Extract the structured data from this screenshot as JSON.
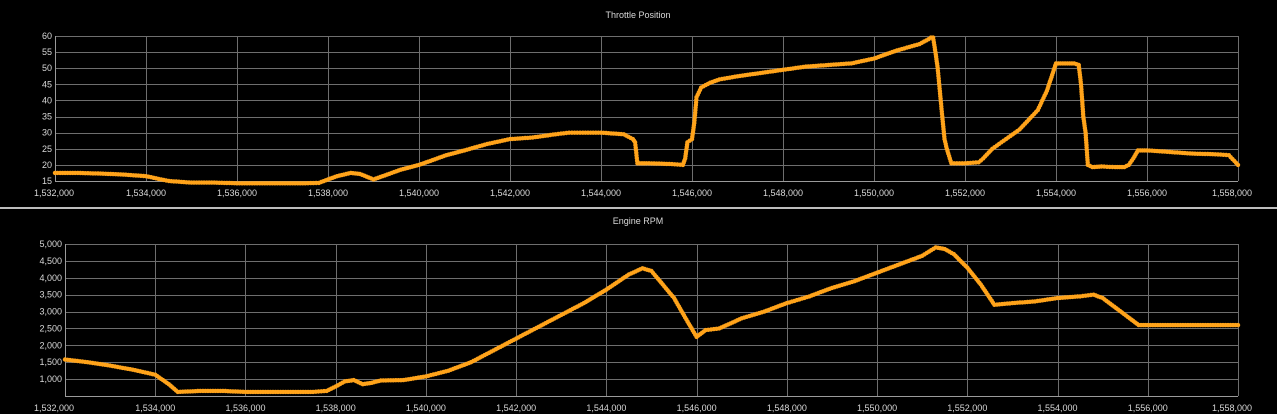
{
  "colors": {
    "background": "#000000",
    "series": "#ffa31a",
    "grid": "#6e6e6e",
    "text": "#d8d8d8"
  },
  "chart_data": [
    {
      "type": "line",
      "title": "Throttle Position",
      "xlabel": "",
      "ylabel": "",
      "xlim": [
        1532000,
        1558000
      ],
      "ylim": [
        15,
        60
      ],
      "xticks": [
        1532000,
        1534000,
        1536000,
        1538000,
        1540000,
        1542000,
        1544000,
        1546000,
        1548000,
        1550000,
        1552000,
        1554000,
        1556000,
        1558000
      ],
      "yticks": [
        15,
        20,
        25,
        30,
        35,
        40,
        45,
        50,
        55,
        60
      ],
      "grid": true,
      "legend": "none",
      "markers": true,
      "series": [
        {
          "x": [
            1532000,
            1532500,
            1533000,
            1533500,
            1534000,
            1534500,
            1535000,
            1535500,
            1536000,
            1536500,
            1537000,
            1537500,
            1537800,
            1538000,
            1538200,
            1538500,
            1538700,
            1539000,
            1539300,
            1539600,
            1540000,
            1540300,
            1540600,
            1541000,
            1541500,
            1542000,
            1542500,
            1543000,
            1543300,
            1543600,
            1544000,
            1544500,
            1544700,
            1544750,
            1544800,
            1545000,
            1545500,
            1545800,
            1545850,
            1545900,
            1546000,
            1546050,
            1546100,
            1546200,
            1546400,
            1546600,
            1547000,
            1547500,
            1548000,
            1548500,
            1549000,
            1549500,
            1550000,
            1550500,
            1551000,
            1551200,
            1551250,
            1551300,
            1551350,
            1551400,
            1551500,
            1551550,
            1551600,
            1551700,
            1552000,
            1552300,
            1552400,
            1552600,
            1552800,
            1553000,
            1553200,
            1553400,
            1553600,
            1553700,
            1553800,
            1554000,
            1554200,
            1554400,
            1554500,
            1554550,
            1554600,
            1554650,
            1554700,
            1554800,
            1555000,
            1555300,
            1555500,
            1555600,
            1555700,
            1555800,
            1556000,
            1556500,
            1557000,
            1557500,
            1557800,
            1558000
          ],
          "y": [
            17.5,
            17.5,
            17.3,
            17,
            16.5,
            15,
            14.5,
            14.5,
            14.3,
            14.3,
            14.3,
            14.3,
            14.4,
            15.5,
            16.5,
            17.5,
            17.2,
            15.5,
            17,
            18.5,
            20,
            21.5,
            23,
            24.5,
            26.5,
            28,
            28.5,
            29.5,
            30,
            30,
            30,
            29.5,
            28,
            27,
            20.5,
            20.5,
            20.3,
            20,
            22,
            27,
            28,
            33,
            41,
            44,
            45.5,
            46.5,
            47.5,
            48.5,
            49.5,
            50.5,
            51,
            51.5,
            53,
            55.5,
            57.5,
            59,
            59.5,
            59.5,
            55,
            50,
            35,
            28,
            25,
            20.5,
            20.5,
            20.8,
            22,
            25,
            27,
            29,
            31,
            34,
            37,
            40,
            43,
            51.5,
            51.5,
            51.5,
            51,
            45,
            35,
            30,
            20,
            19.3,
            19.5,
            19.3,
            19.3,
            20,
            22,
            24.5,
            24.5,
            24,
            23.5,
            23.3,
            23,
            20
          ]
        }
      ]
    },
    {
      "type": "line",
      "title": "Engine RPM",
      "xlabel": "",
      "ylabel": "",
      "xlim": [
        1532000,
        1558000
      ],
      "ylim": [
        500,
        5000
      ],
      "xticks": [
        1532000,
        1534000,
        1536000,
        1538000,
        1540000,
        1542000,
        1544000,
        1546000,
        1548000,
        1550000,
        1552000,
        1554000,
        1556000,
        1558000
      ],
      "yticks": [
        1000,
        1500,
        2000,
        2500,
        3000,
        3500,
        4000,
        4500,
        5000
      ],
      "grid": true,
      "legend": "none",
      "markers": true,
      "series": [
        {
          "x": [
            1532000,
            1532500,
            1533000,
            1533500,
            1534000,
            1534300,
            1534500,
            1535000,
            1535500,
            1536000,
            1536500,
            1537000,
            1537500,
            1537800,
            1538000,
            1538200,
            1538400,
            1538600,
            1538800,
            1539000,
            1539500,
            1540000,
            1540500,
            1541000,
            1541500,
            1542000,
            1542500,
            1543000,
            1543500,
            1544000,
            1544500,
            1544800,
            1545000,
            1545500,
            1545800,
            1546000,
            1546200,
            1546500,
            1547000,
            1547500,
            1548000,
            1548500,
            1549000,
            1549500,
            1550000,
            1550500,
            1551000,
            1551300,
            1551500,
            1551700,
            1552000,
            1552300,
            1552600,
            1553000,
            1553500,
            1554000,
            1554500,
            1554800,
            1555000,
            1555300,
            1555600,
            1555800,
            1556000,
            1556500,
            1557000,
            1557500,
            1558000
          ],
          "y": [
            1580,
            1500,
            1400,
            1280,
            1130,
            850,
            620,
            650,
            650,
            620,
            620,
            620,
            620,
            650,
            780,
            930,
            970,
            850,
            890,
            960,
            970,
            1080,
            1250,
            1500,
            1850,
            2200,
            2550,
            2900,
            3250,
            3650,
            4100,
            4280,
            4200,
            3400,
            2700,
            2250,
            2450,
            2500,
            2800,
            3000,
            3250,
            3450,
            3700,
            3900,
            4150,
            4400,
            4650,
            4900,
            4850,
            4700,
            4300,
            3800,
            3200,
            3250,
            3300,
            3400,
            3450,
            3500,
            3400,
            3100,
            2800,
            2600,
            2600,
            2600,
            2600,
            2600,
            2600
          ]
        }
      ]
    }
  ]
}
